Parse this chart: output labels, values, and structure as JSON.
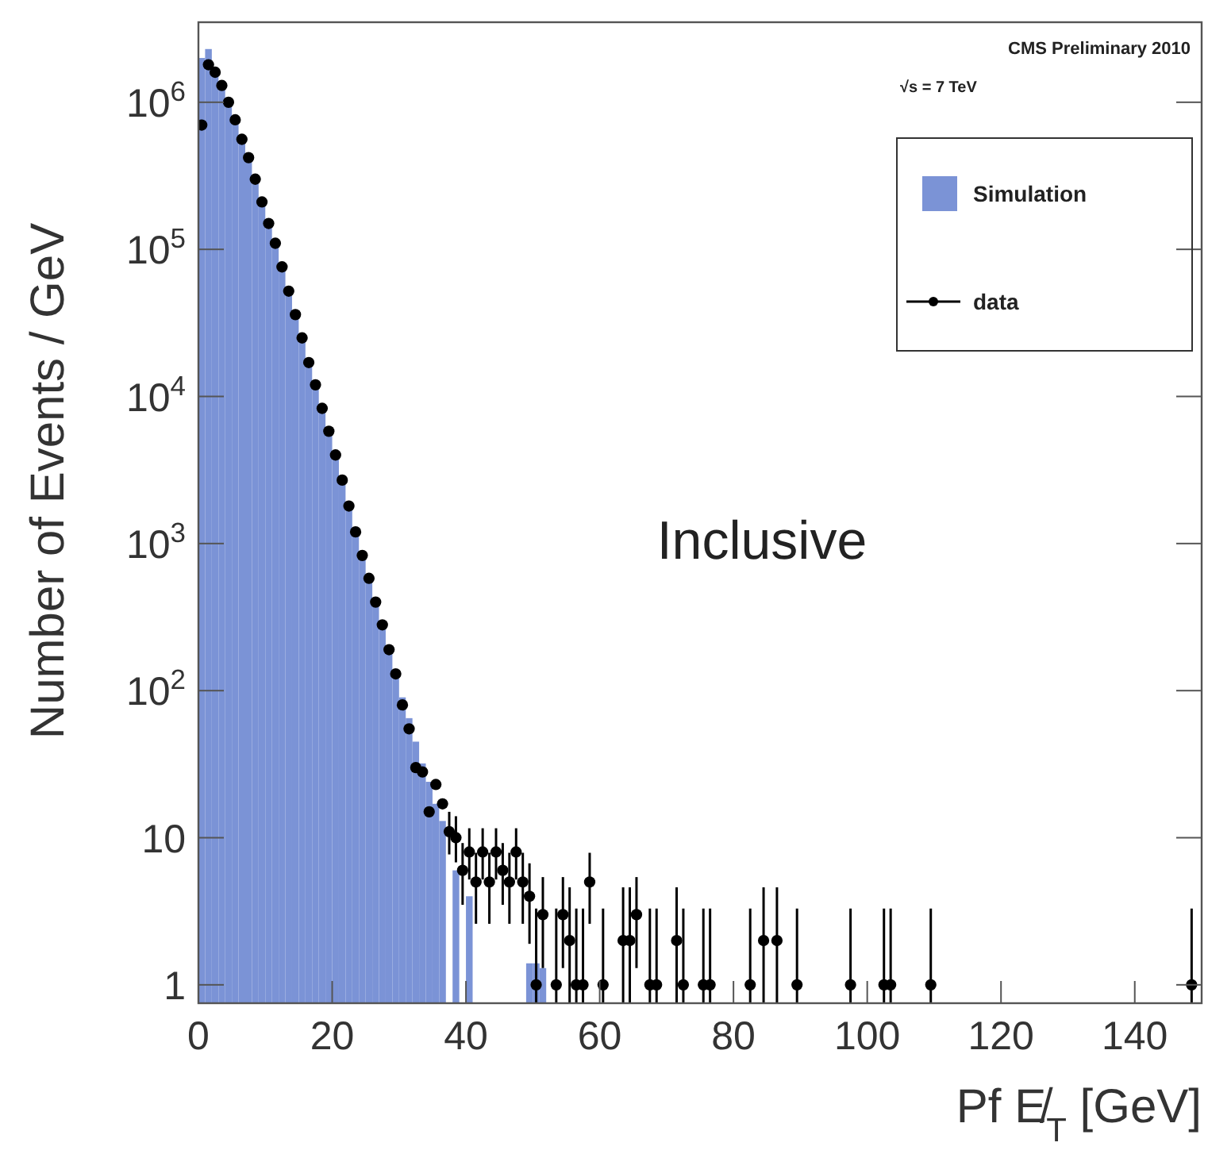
{
  "chart_data": {
    "type": "histogram",
    "xlabel": "Pf E̸$_{T}$ [GeV]",
    "ylabel": "Number of Events / GeV",
    "annotations": [
      "CMS Preliminary 2010",
      "√s = 7 TeV",
      "Inclusive"
    ],
    "xlim": [
      0,
      150
    ],
    "xticks": [
      0,
      20,
      40,
      60,
      80,
      100,
      120,
      140
    ],
    "ylim": [
      0.75,
      3500000
    ],
    "yticks": [
      1,
      10,
      {
        "value": 100,
        "label": "10$^{2}$"
      },
      {
        "value": 1000,
        "label": "10$^{3}$"
      },
      {
        "value": 10000,
        "label": "10$^{4}$"
      },
      {
        "value": 100000,
        "label": "10$^{5}$"
      },
      {
        "value": 1000000,
        "label": "10$^{6}$"
      }
    ],
    "log": true,
    "legend": "top right",
    "series": [
      {
        "name": "Simulation",
        "color": "#7b93d6",
        "bins": [
          0,
          1,
          2,
          3,
          4,
          5,
          6,
          7,
          8,
          9,
          10,
          11,
          12,
          13,
          14,
          15,
          16,
          17,
          18,
          19,
          20,
          21,
          22,
          23,
          24,
          25,
          26,
          27,
          28,
          29,
          30,
          31,
          32,
          33,
          34,
          35,
          36,
          37,
          38,
          39,
          40,
          41,
          49,
          50,
          51,
          52
        ],
        "values": [
          2000000,
          2300000,
          1600000,
          1300000,
          1000000,
          760000,
          560000,
          420000,
          300000,
          210000,
          150000,
          110000,
          76000,
          52000,
          36000,
          25000,
          17000,
          12000,
          8300,
          5800,
          4000,
          2700,
          1800,
          1200,
          830,
          580,
          400,
          280,
          190,
          130,
          90,
          65,
          45,
          32,
          24,
          17,
          13,
          null,
          6,
          null,
          4,
          null,
          1.4,
          1.4,
          1.3
        ]
      },
      {
        "name": "data",
        "type": "scatter",
        "color": "#000000",
        "marker": "circle",
        "x": [
          0.5,
          1.5,
          2.5,
          3.5,
          4.5,
          5.5,
          6.5,
          7.5,
          8.5,
          9.5,
          10.5,
          11.5,
          12.5,
          13.5,
          14.5,
          15.5,
          16.5,
          17.5,
          18.5,
          19.5,
          20.5,
          21.5,
          22.5,
          23.5,
          24.5,
          25.5,
          26.5,
          27.5,
          28.5,
          29.5,
          30.5,
          31.5,
          32.5,
          33.5,
          34.5,
          35.5,
          36.5,
          37.5,
          38.5,
          39.5,
          40.5,
          41.5,
          42.5,
          43.5,
          44.5,
          45.5,
          46.5,
          47.5,
          48.5,
          49.5,
          50.5,
          51.5,
          53.5,
          54.5,
          55.5,
          56.5,
          57.5,
          58.5,
          60.5,
          63.5,
          64.5,
          65.5,
          67.5,
          68.5,
          71.5,
          72.5,
          75.5,
          76.5,
          82.5,
          84.5,
          86.5,
          89.5,
          97.5,
          102.5,
          103.5,
          109.5,
          148.5
        ],
        "values": [
          700000,
          1800000,
          1600000,
          1300000,
          1000000,
          760000,
          560000,
          420000,
          300000,
          210000,
          150000,
          110000,
          76000,
          52000,
          36000,
          25000,
          17000,
          12000,
          8300,
          5800,
          4000,
          2700,
          1800,
          1200,
          830,
          580,
          400,
          280,
          190,
          130,
          80,
          55,
          30,
          28,
          15,
          23,
          17,
          11,
          10,
          6,
          8,
          5,
          8,
          5,
          8,
          6,
          5,
          8,
          5,
          4,
          1,
          3,
          1,
          3,
          2,
          1,
          1,
          5,
          1,
          2,
          2,
          3,
          1,
          1,
          2,
          1,
          1,
          1,
          1,
          2,
          2,
          1,
          1,
          1,
          1,
          1,
          1
        ],
        "errors": [
          null,
          null,
          null,
          null,
          null,
          null,
          null,
          null,
          null,
          null,
          null,
          null,
          null,
          null,
          null,
          null,
          null,
          null,
          null,
          null,
          null,
          null,
          null,
          null,
          null,
          null,
          null,
          null,
          null,
          null,
          null,
          null,
          null,
          null,
          null,
          null,
          null,
          [
            7.7,
            15
          ],
          [
            6.8,
            14
          ],
          [
            3.5,
            9.2
          ],
          [
            5.2,
            11.6
          ],
          [
            2.6,
            7.9
          ],
          [
            5.2,
            11.6
          ],
          [
            2.6,
            7.9
          ],
          [
            5.2,
            11.6
          ],
          [
            3.5,
            9.2
          ],
          [
            2.6,
            7.9
          ],
          [
            5.2,
            11.6
          ],
          [
            2.6,
            7.9
          ],
          [
            1.9,
            6.7
          ],
          [
            0.75,
            3.3
          ],
          [
            1.3,
            5.4
          ],
          [
            0.75,
            3.3
          ],
          [
            1.3,
            5.4
          ],
          [
            0.75,
            4.6
          ],
          [
            0.75,
            3.3
          ],
          [
            0.75,
            3.3
          ],
          [
            2.6,
            7.9
          ],
          [
            0.75,
            3.3
          ],
          [
            0.75,
            4.6
          ],
          [
            0.75,
            4.6
          ],
          [
            1.3,
            5.4
          ],
          [
            0.75,
            3.3
          ],
          [
            0.75,
            3.3
          ],
          [
            0.75,
            4.6
          ],
          [
            0.75,
            3.3
          ],
          [
            0.75,
            3.3
          ],
          [
            0.75,
            3.3
          ],
          [
            0.75,
            3.3
          ],
          [
            0.75,
            4.6
          ],
          [
            0.75,
            4.6
          ],
          [
            0.75,
            3.3
          ],
          [
            0.75,
            3.3
          ],
          [
            0.75,
            3.3
          ],
          [
            0.75,
            3.3
          ],
          [
            0.75,
            3.3
          ],
          [
            0.75,
            3.3
          ]
        ]
      }
    ]
  }
}
